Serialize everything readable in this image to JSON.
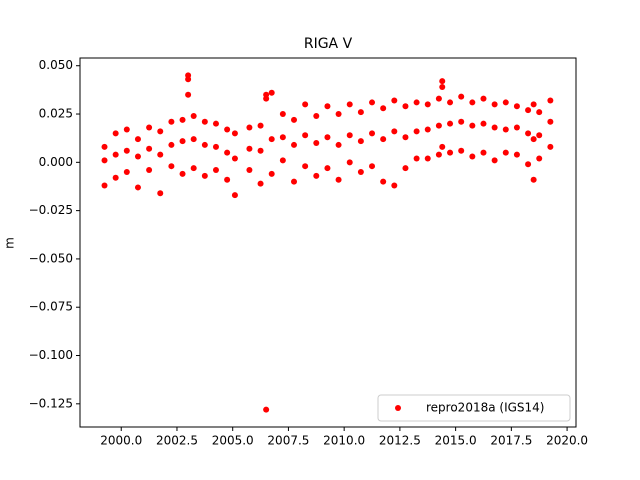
{
  "chart_data": {
    "type": "scatter",
    "title": "RIGA V",
    "ylabel": "m",
    "x": [
      1999.25,
      1999.25,
      1999.25,
      1999.75,
      1999.75,
      1999.75,
      2000.25,
      2000.25,
      2000.25,
      2000.75,
      2000.75,
      2000.75,
      2001.25,
      2001.25,
      2001.25,
      2001.75,
      2001.75,
      2001.75,
      2002.25,
      2002.25,
      2002.25,
      2002.75,
      2002.75,
      2002.75,
      2003.0,
      2003.0,
      2003.0,
      2003.25,
      2003.25,
      2003.25,
      2003.75,
      2003.75,
      2003.75,
      2004.25,
      2004.25,
      2004.25,
      2004.75,
      2004.75,
      2004.75,
      2005.1,
      2005.1,
      2005.1,
      2005.75,
      2005.75,
      2005.75,
      2006.25,
      2006.25,
      2006.25,
      2006.5,
      2006.5,
      2006.5,
      2006.75,
      2006.75,
      2006.75,
      2007.25,
      2007.25,
      2007.25,
      2007.75,
      2007.75,
      2007.75,
      2008.25,
      2008.25,
      2008.25,
      2008.75,
      2008.75,
      2008.75,
      2009.25,
      2009.25,
      2009.25,
      2009.75,
      2009.75,
      2009.75,
      2010.25,
      2010.25,
      2010.25,
      2010.75,
      2010.75,
      2010.75,
      2011.25,
      2011.25,
      2011.25,
      2011.75,
      2011.75,
      2011.75,
      2012.25,
      2012.25,
      2012.25,
      2012.75,
      2012.75,
      2012.75,
      2013.25,
      2013.25,
      2013.25,
      2013.75,
      2013.75,
      2013.75,
      2014.25,
      2014.25,
      2014.25,
      2014.4,
      2014.4,
      2014.4,
      2014.75,
      2014.75,
      2014.75,
      2015.25,
      2015.25,
      2015.25,
      2015.75,
      2015.75,
      2015.75,
      2016.25,
      2016.25,
      2016.25,
      2016.75,
      2016.75,
      2016.75,
      2017.25,
      2017.25,
      2017.25,
      2017.75,
      2017.75,
      2017.75,
      2018.25,
      2018.25,
      2018.25,
      2018.5,
      2018.5,
      2018.5,
      2018.75,
      2018.75,
      2018.75,
      2019.25,
      2019.25,
      2019.25
    ],
    "series": [
      {
        "name": "repro2018a (IGS14)",
        "color": "#ff0000",
        "values": [
          0.008,
          0.001,
          -0.012,
          0.015,
          0.004,
          -0.008,
          0.017,
          0.006,
          -0.005,
          0.012,
          0.003,
          -0.013,
          0.018,
          0.007,
          -0.004,
          0.016,
          0.004,
          -0.016,
          0.021,
          0.009,
          -0.002,
          0.022,
          0.011,
          -0.006,
          0.045,
          0.043,
          0.035,
          0.024,
          0.012,
          -0.003,
          0.021,
          0.009,
          -0.007,
          0.02,
          0.008,
          -0.004,
          0.017,
          0.005,
          -0.009,
          0.015,
          0.002,
          -0.017,
          0.018,
          0.007,
          -0.004,
          0.019,
          0.006,
          -0.011,
          0.033,
          0.035,
          -0.128,
          0.036,
          0.012,
          -0.006,
          0.025,
          0.013,
          0.001,
          0.022,
          0.009,
          -0.01,
          0.03,
          0.014,
          -0.002,
          0.024,
          0.01,
          -0.007,
          0.029,
          0.013,
          -0.003,
          0.025,
          0.009,
          -0.009,
          0.03,
          0.014,
          0.0,
          0.026,
          0.011,
          -0.005,
          0.031,
          0.015,
          -0.002,
          0.028,
          0.012,
          -0.01,
          0.032,
          0.016,
          -0.012,
          0.029,
          0.013,
          -0.003,
          0.031,
          0.016,
          0.002,
          0.03,
          0.017,
          0.002,
          0.033,
          0.019,
          0.004,
          0.042,
          0.039,
          0.008,
          0.031,
          0.02,
          0.005,
          0.034,
          0.021,
          0.006,
          0.031,
          0.019,
          0.003,
          0.033,
          0.02,
          0.005,
          0.03,
          0.018,
          0.001,
          0.031,
          0.017,
          0.005,
          0.029,
          0.018,
          0.004,
          0.027,
          0.015,
          -0.001,
          0.03,
          0.012,
          -0.009,
          0.026,
          0.014,
          0.002,
          0.032,
          0.021,
          0.008
        ]
      }
    ],
    "xlim": [
      1998.15,
      2020.4
    ],
    "ylim": [
      -0.137,
      0.054
    ],
    "xticks": [
      {
        "value": 2000,
        "label": "2000.0"
      },
      {
        "value": 2002.5,
        "label": "2002.5"
      },
      {
        "value": 2005,
        "label": "2005.0"
      },
      {
        "value": 2007.5,
        "label": "2007.5"
      },
      {
        "value": 2010,
        "label": "2010.0"
      },
      {
        "value": 2012.5,
        "label": "2012.5"
      },
      {
        "value": 2015,
        "label": "2015.0"
      },
      {
        "value": 2017.5,
        "label": "2017.5"
      },
      {
        "value": 2020,
        "label": "2020.0"
      }
    ],
    "yticks": [
      {
        "value": -0.125,
        "label": "−0.125"
      },
      {
        "value": -0.1,
        "label": "−0.100"
      },
      {
        "value": -0.075,
        "label": "−0.075"
      },
      {
        "value": -0.05,
        "label": "−0.050"
      },
      {
        "value": -0.025,
        "label": "−0.025"
      },
      {
        "value": 0,
        "label": "0.000"
      },
      {
        "value": 0.025,
        "label": "0.025"
      },
      {
        "value": 0.05,
        "label": "0.050"
      }
    ],
    "legend": "lower right",
    "grid": false
  }
}
